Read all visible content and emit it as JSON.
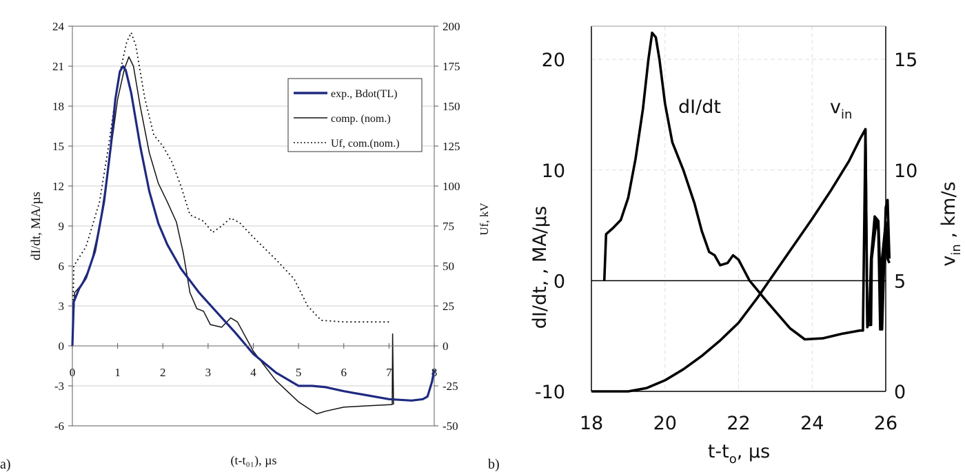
{
  "chart_data": [
    {
      "panel_label": "a)",
      "type": "line",
      "xlabel": "(t-t₀₁), µs",
      "ylabel": "dI/dt,  MA/µs",
      "y2label": "Uf, kV",
      "xlim": [
        0,
        8
      ],
      "ylim": [
        -6,
        24
      ],
      "y2lim": [
        -50,
        200
      ],
      "xticks": [
        "0",
        "1",
        "2",
        "3",
        "4",
        "5",
        "6",
        "7",
        "8"
      ],
      "yticks": [
        "-6",
        "-3",
        "0",
        "3",
        "6",
        "9",
        "12",
        "15",
        "18",
        "21",
        "24"
      ],
      "y2ticks": [
        "-50",
        "-25",
        "0",
        "25",
        "50",
        "75",
        "100",
        "125",
        "150",
        "175",
        "200"
      ],
      "grid": true,
      "legend_position": "top-right",
      "series": [
        {
          "name": "exp., Bdot(TL)",
          "color": "#1f2a80",
          "style": "solid-thick",
          "axis": "left",
          "points": [
            [
              0,
              0
            ],
            [
              0.03,
              3.3
            ],
            [
              0.15,
              4.3
            ],
            [
              0.3,
              5.1
            ],
            [
              0.5,
              7.1
            ],
            [
              0.7,
              10.8
            ],
            [
              0.85,
              15.0
            ],
            [
              0.95,
              18.5
            ],
            [
              1.05,
              20.6
            ],
            [
              1.12,
              21.0
            ],
            [
              1.18,
              20.7
            ],
            [
              1.3,
              19.0
            ],
            [
              1.5,
              15.0
            ],
            [
              1.7,
              11.6
            ],
            [
              1.9,
              9.2
            ],
            [
              2.1,
              7.6
            ],
            [
              2.4,
              5.8
            ],
            [
              2.8,
              4.0
            ],
            [
              3.2,
              2.5
            ],
            [
              3.6,
              1.0
            ],
            [
              4.0,
              -0.6
            ],
            [
              4.5,
              -2.0
            ],
            [
              5.0,
              -3.0
            ],
            [
              5.3,
              -3.0
            ],
            [
              5.6,
              -3.1
            ],
            [
              6.0,
              -3.4
            ],
            [
              6.5,
              -3.7
            ],
            [
              7.0,
              -4.0
            ],
            [
              7.5,
              -4.1
            ],
            [
              7.75,
              -4.0
            ],
            [
              7.85,
              -3.8
            ],
            [
              7.95,
              -2.7
            ],
            [
              8.0,
              -1.8
            ]
          ]
        },
        {
          "name": "comp. (nom.)",
          "color": "#111111",
          "style": "solid-thin",
          "axis": "left",
          "points": [
            [
              0,
              0
            ],
            [
              0.05,
              4.0
            ],
            [
              0.2,
              4.6
            ],
            [
              0.4,
              6.0
            ],
            [
              0.6,
              9.0
            ],
            [
              0.8,
              13.5
            ],
            [
              1.0,
              18.5
            ],
            [
              1.15,
              20.8
            ],
            [
              1.25,
              21.7
            ],
            [
              1.35,
              21.0
            ],
            [
              1.5,
              18.0
            ],
            [
              1.7,
              14.5
            ],
            [
              1.9,
              12.2
            ],
            [
              2.1,
              10.8
            ],
            [
              2.3,
              9.3
            ],
            [
              2.45,
              7.0
            ],
            [
              2.6,
              4.0
            ],
            [
              2.75,
              2.8
            ],
            [
              2.9,
              2.6
            ],
            [
              3.05,
              1.6
            ],
            [
              3.3,
              1.4
            ],
            [
              3.5,
              2.1
            ],
            [
              3.65,
              1.8
            ],
            [
              4.0,
              -0.4
            ],
            [
              4.5,
              -2.6
            ],
            [
              5.0,
              -4.2
            ],
            [
              5.4,
              -5.1
            ],
            [
              5.6,
              -4.9
            ],
            [
              6.0,
              -4.6
            ],
            [
              6.5,
              -4.5
            ],
            [
              7.07,
              -4.4
            ],
            [
              7.08,
              0.9
            ],
            [
              7.1,
              -4.4
            ]
          ]
        },
        {
          "name": "Uf, com.(nom.)",
          "color": "#111111",
          "style": "dotted",
          "axis": "right",
          "points": [
            [
              0,
              0
            ],
            [
              0.03,
              50
            ],
            [
              0.3,
              62
            ],
            [
              0.6,
              90
            ],
            [
              0.8,
              125
            ],
            [
              1.0,
              165
            ],
            [
              1.2,
              190
            ],
            [
              1.3,
              196
            ],
            [
              1.4,
              188
            ],
            [
              1.6,
              155
            ],
            [
              1.8,
              132
            ],
            [
              2.0,
              125
            ],
            [
              2.2,
              115
            ],
            [
              2.4,
              100
            ],
            [
              2.6,
              82
            ],
            [
              2.9,
              78
            ],
            [
              3.1,
              71
            ],
            [
              3.3,
              75
            ],
            [
              3.5,
              80
            ],
            [
              3.7,
              77
            ],
            [
              4.0,
              68
            ],
            [
              4.5,
              54
            ],
            [
              4.9,
              42
            ],
            [
              5.2,
              25
            ],
            [
              5.5,
              16
            ],
            [
              6.0,
              15
            ],
            [
              6.5,
              15
            ],
            [
              7.0,
              15
            ]
          ]
        }
      ]
    },
    {
      "panel_label": "b)",
      "type": "line",
      "xlabel": "t-t",
      "xlabel_sub": "o",
      "xlabel_tail": ", µs",
      "ylabel": "dI/dt, , MA/µs",
      "y2label": "v",
      "y2label_sub": "in",
      "y2label_tail": " , km/s",
      "xlim": [
        18,
        26
      ],
      "ylim": [
        -10,
        23
      ],
      "y2lim": [
        0,
        16.5
      ],
      "xticks": [
        "18",
        "20",
        "22",
        "24",
        "26"
      ],
      "yticks": [
        "-10",
        "0",
        "10",
        "20"
      ],
      "y2ticks": [
        "0",
        "5",
        "10",
        "15"
      ],
      "grid": true,
      "annotations": [
        {
          "text": "dI/dt",
          "sub": ""
        },
        {
          "text": "v",
          "sub": "in"
        }
      ],
      "series": [
        {
          "name": "",
          "color": "#000000",
          "style": "solid-thick",
          "axis": "left",
          "points": [
            [
              18.35,
              0
            ],
            [
              18.4,
              4.2
            ],
            [
              18.6,
              4.8
            ],
            [
              18.8,
              5.5
            ],
            [
              19.0,
              7.5
            ],
            [
              19.2,
              11
            ],
            [
              19.4,
              15.5
            ],
            [
              19.55,
              20
            ],
            [
              19.65,
              22.4
            ],
            [
              19.75,
              22.0
            ],
            [
              19.85,
              20
            ],
            [
              20.0,
              16
            ],
            [
              20.2,
              12.5
            ],
            [
              20.5,
              10
            ],
            [
              20.8,
              7
            ],
            [
              21.0,
              4.5
            ],
            [
              21.2,
              2.6
            ],
            [
              21.35,
              2.3
            ],
            [
              21.5,
              1.4
            ],
            [
              21.7,
              1.6
            ],
            [
              21.85,
              2.3
            ],
            [
              22.0,
              1.9
            ],
            [
              22.3,
              0
            ],
            [
              22.8,
              -2
            ],
            [
              23.4,
              -4.3
            ],
            [
              23.8,
              -5.3
            ],
            [
              24.3,
              -5.2
            ],
            [
              24.8,
              -4.8
            ],
            [
              25.3,
              -4.5
            ],
            [
              25.38,
              -4.5
            ],
            [
              25.45,
              13.6
            ],
            [
              25.5,
              -4.0
            ],
            [
              25.6,
              -4.0
            ],
            [
              25.62,
              2
            ],
            [
              25.75,
              5.6
            ],
            [
              25.8,
              4.5
            ],
            [
              25.85,
              -4.4
            ],
            [
              25.9,
              2
            ],
            [
              26.0,
              5.3
            ],
            [
              26.05,
              2
            ],
            [
              26.1,
              1.6
            ]
          ]
        },
        {
          "name": "",
          "color": "#000000",
          "style": "solid-thick",
          "axis": "left",
          "points": [
            [
              18.0,
              -10
            ],
            [
              18.5,
              -10
            ],
            [
              19.0,
              -10
            ],
            [
              19.5,
              -9.7
            ],
            [
              20.0,
              -9
            ],
            [
              20.5,
              -8
            ],
            [
              21.0,
              -6.8
            ],
            [
              21.5,
              -5.4
            ],
            [
              22.0,
              -3.8
            ],
            [
              22.5,
              -1.6
            ],
            [
              23.0,
              0.8
            ],
            [
              23.5,
              3.2
            ],
            [
              24.0,
              5.6
            ],
            [
              24.5,
              8.1
            ],
            [
              25.0,
              10.8
            ],
            [
              25.3,
              12.8
            ],
            [
              25.45,
              13.7
            ],
            [
              25.5,
              -4.2
            ],
            [
              25.55,
              -3.5
            ],
            [
              25.6,
              2
            ],
            [
              25.7,
              5.8
            ],
            [
              25.8,
              5.4
            ],
            [
              25.9,
              -4.4
            ],
            [
              26.0,
              6.6
            ],
            [
              26.05,
              7.3
            ],
            [
              26.1,
              2
            ]
          ]
        }
      ]
    }
  ]
}
